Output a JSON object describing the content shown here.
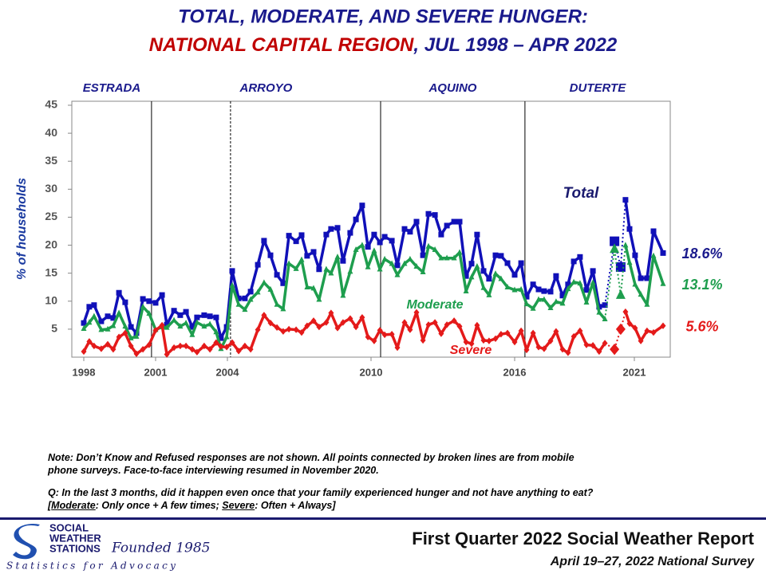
{
  "chart_data": {
    "type": "line",
    "title": {
      "line1": "TOTAL, MODERATE, AND SEVERE HUNGER:",
      "region": "NATIONAL CAPITAL REGION",
      "period": ", JUL 1998 – APR 2022"
    },
    "y_label": "% of households",
    "xlim": [
      1997.5,
      2022.5
    ],
    "xticks": [
      1998,
      2001,
      2004,
      2010,
      2016,
      2021
    ],
    "ylim": [
      0,
      45
    ],
    "yticks": [
      5,
      10,
      15,
      20,
      25,
      30,
      35,
      40,
      45
    ],
    "grid": false,
    "eras": [
      {
        "name": "ESTRADA"
      },
      {
        "name": "ARROYO"
      },
      {
        "name": "AQUINO"
      },
      {
        "name": "DUTERTE"
      }
    ],
    "dividers": [
      {
        "x": 2000.83,
        "style": "solid"
      },
      {
        "x": 2004.13,
        "style": "dashed"
      },
      {
        "x": 2010.4,
        "style": "solid"
      },
      {
        "x": 2016.43,
        "style": "solid"
      }
    ],
    "dotted_indices": [
      87,
      88
    ],
    "x": [
      1998.0,
      1998.23,
      1998.43,
      1998.73,
      1999.0,
      1999.23,
      1999.47,
      1999.73,
      1999.97,
      2000.2,
      2000.47,
      2000.73,
      2001.0,
      2001.27,
      2001.47,
      2001.77,
      2002.03,
      2002.27,
      2002.53,
      2002.73,
      2003.03,
      2003.27,
      2003.53,
      2003.73,
      2003.97,
      2004.2,
      2004.47,
      2004.73,
      2004.97,
      2005.27,
      2005.53,
      2005.8,
      2006.07,
      2006.33,
      2006.57,
      2006.87,
      2007.1,
      2007.33,
      2007.6,
      2007.83,
      2008.13,
      2008.33,
      2008.6,
      2008.83,
      2009.13,
      2009.37,
      2009.63,
      2009.87,
      2010.13,
      2010.37,
      2010.57,
      2010.87,
      2011.1,
      2011.4,
      2011.63,
      2011.9,
      2012.17,
      2012.4,
      2012.67,
      2012.93,
      2013.17,
      2013.47,
      2013.7,
      2013.97,
      2014.2,
      2014.43,
      2014.7,
      2014.93,
      2015.2,
      2015.43,
      2015.7,
      2016.0,
      2016.27,
      2016.5,
      2016.77,
      2017.0,
      2017.23,
      2017.5,
      2017.73,
      2018.0,
      2018.23,
      2018.47,
      2018.73,
      2019.0,
      2019.27,
      2019.53,
      2019.77,
      2020.17,
      2020.43,
      2020.63,
      2020.8,
      2021.03,
      2021.27,
      2021.53,
      2021.8,
      2022.2
    ],
    "series": [
      {
        "name": "Total",
        "color": "#1010b8",
        "marker": "square",
        "end_label": "18.6%",
        "values": [
          6.1,
          9,
          9.3,
          6.4,
          7.3,
          7,
          11.5,
          9.8,
          5.4,
          4.3,
          10.4,
          10,
          9.7,
          11.1,
          5.8,
          8.3,
          7.5,
          8.1,
          5.4,
          7.1,
          7.5,
          7.3,
          7.1,
          3.4,
          5.4,
          15.4,
          10.5,
          10.5,
          11.7,
          16.5,
          20.8,
          18.2,
          14.7,
          13.2,
          21.7,
          20.7,
          21.8,
          18.1,
          18.8,
          15.7,
          21.9,
          22.9,
          23.1,
          17.2,
          22.2,
          24.6,
          27.1,
          19.7,
          21.9,
          20.5,
          21.5,
          20.8,
          16.4,
          22.9,
          22.4,
          24.2,
          18.2,
          25.6,
          25.4,
          21.9,
          23.5,
          24.2,
          24.2,
          14.5,
          16.7,
          21.9,
          15.4,
          14,
          18.2,
          18.1,
          16.8,
          14.7,
          16.8,
          10.8,
          13,
          12.1,
          11.8,
          11.7,
          14.5,
          11,
          13,
          17.1,
          17.9,
          12,
          15.4,
          9,
          9.3,
          20.7,
          16.1,
          28.1,
          22.9,
          18.2,
          14.1,
          14.1,
          22.5,
          18.6
        ]
      },
      {
        "name": "Moderate",
        "color": "#1e9e4e",
        "marker": "triangle",
        "end_label": "13.1%",
        "values": [
          5.1,
          6.2,
          7.3,
          4.9,
          5,
          5.6,
          7.9,
          5.5,
          3.4,
          3.7,
          9,
          7.8,
          4.9,
          5.4,
          5.3,
          6.6,
          5.5,
          6.1,
          4,
          6.2,
          5.5,
          5.9,
          4.5,
          1.5,
          3.6,
          12.8,
          9.4,
          8.5,
          10.3,
          11.6,
          13.3,
          12.1,
          9.4,
          8.6,
          16.7,
          15.8,
          17.4,
          12.5,
          12.3,
          10.3,
          15.7,
          15,
          17.9,
          11,
          15.3,
          19.2,
          20,
          16.1,
          19,
          15.7,
          17.5,
          16.7,
          14.7,
          16.7,
          17.5,
          16.2,
          15.2,
          19.8,
          19.2,
          17.7,
          17.7,
          17.7,
          18.7,
          11.8,
          14.3,
          16.2,
          12.4,
          11.1,
          14.9,
          14,
          12.5,
          12,
          12.1,
          9.5,
          8.7,
          10.3,
          10.3,
          8.8,
          9.9,
          9.6,
          12.2,
          13.4,
          13.2,
          9.8,
          13.3,
          8,
          6.8,
          19.3,
          11.1,
          20,
          16.9,
          13,
          11.2,
          9.4,
          18.1,
          13.1
        ]
      },
      {
        "name": "Severe",
        "color": "#e41a1a",
        "marker": "diamond",
        "end_label": "5.6%",
        "values": [
          1,
          2.8,
          2,
          1.5,
          2.3,
          1.4,
          3.6,
          4.3,
          2,
          0.6,
          1.4,
          2.2,
          4.8,
          5.7,
          0.5,
          1.7,
          2,
          2,
          1.4,
          0.9,
          2,
          1.4,
          2.6,
          1.9,
          1.8,
          2.6,
          1.1,
          2,
          1.4,
          4.9,
          7.5,
          6.1,
          5.3,
          4.6,
          5,
          4.9,
          4.4,
          5.6,
          6.5,
          5.4,
          6.2,
          7.9,
          5.2,
          6.2,
          6.9,
          5.4,
          7.1,
          3.6,
          2.9,
          4.8,
          4,
          4.1,
          1.7,
          6.2,
          4.9,
          8,
          3,
          5.8,
          6.2,
          4.2,
          5.8,
          6.5,
          5.5,
          2.7,
          2.4,
          5.7,
          3,
          2.9,
          3.3,
          4.1,
          4.3,
          2.7,
          4.7,
          1.3,
          4.3,
          1.8,
          1.5,
          2.9,
          4.6,
          1.4,
          0.8,
          3.7,
          4.7,
          2.2,
          2.1,
          1,
          2.5,
          1.4,
          5,
          8.1,
          6,
          5.2,
          2.9,
          4.7,
          4.4,
          5.6
        ]
      }
    ]
  },
  "notes": {
    "note": [
      "Note: Don’t Know and Refused responses are not shown. All points connected by broken lines are from mobile",
      "phone surveys. Face-to-face interviewing resumed in November 2020."
    ],
    "question": "Q: In the last 3 months, did it happen even once that your family experienced hunger and not have anything to eat?",
    "definition": [
      "[",
      "Moderate",
      ": Only once + A few times; ",
      "Severe",
      ": Often + Always]"
    ]
  },
  "footer": {
    "org": [
      "SOCIAL",
      "WEATHER",
      "STATIONS"
    ],
    "founded": "Founded 1985",
    "motto": "Statistics for Advocacy",
    "report": "First Quarter 2022 Social Weather Report",
    "survey": "April 19–27, 2022 National Survey"
  }
}
